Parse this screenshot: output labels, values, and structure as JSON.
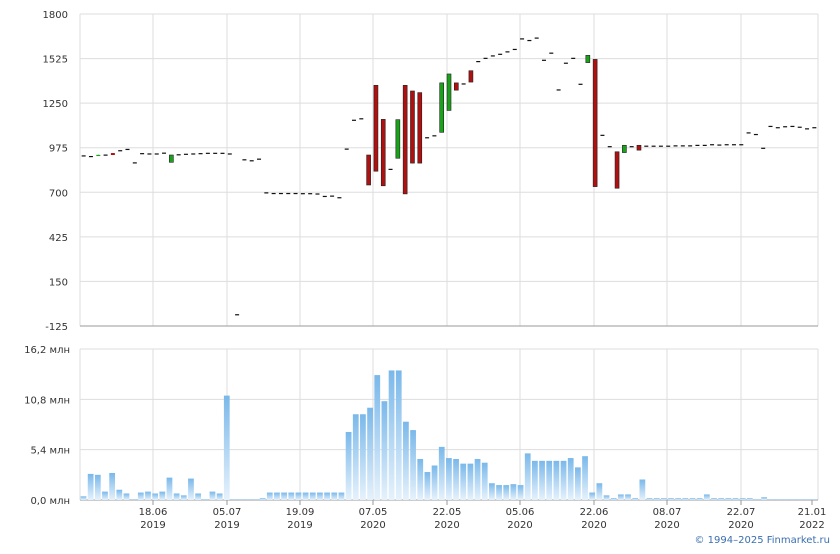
{
  "chart_data": [
    {
      "type": "candlestick",
      "title": "",
      "ylim": [
        -125,
        1800
      ],
      "yticks": [
        "1800",
        "1525",
        "1250",
        "975",
        "700",
        "425",
        "150",
        "-125"
      ],
      "grid": true,
      "colors": {
        "up": "#1aa31a",
        "down": "#b01010",
        "doji": "#111111",
        "grid": "#dddddd",
        "axis": "#999999"
      },
      "candles": [
        {
          "o": 928,
          "h": 928,
          "l": 928,
          "c": 928
        },
        {
          "o": 924,
          "h": 924,
          "l": 924,
          "c": 924
        },
        {
          "o": 925,
          "h": 931,
          "l": 925,
          "c": 931
        },
        {
          "o": 933,
          "h": 933,
          "l": 933,
          "c": 933
        },
        {
          "o": 942,
          "h": 942,
          "l": 930,
          "c": 930
        },
        {
          "o": 960,
          "h": 960,
          "l": 960,
          "c": 960
        },
        {
          "o": 968,
          "h": 968,
          "l": 968,
          "c": 968
        },
        {
          "o": 885,
          "h": 885,
          "l": 885,
          "c": 885
        },
        {
          "o": 942,
          "h": 942,
          "l": 942,
          "c": 942
        },
        {
          "o": 940,
          "h": 940,
          "l": 940,
          "c": 940
        },
        {
          "o": 940,
          "h": 940,
          "l": 940,
          "c": 940
        },
        {
          "o": 945,
          "h": 945,
          "l": 945,
          "c": 945
        },
        {
          "o": 885,
          "h": 930,
          "l": 885,
          "c": 930
        },
        {
          "o": 935,
          "h": 935,
          "l": 935,
          "c": 935
        },
        {
          "o": 938,
          "h": 938,
          "l": 938,
          "c": 938
        },
        {
          "o": 940,
          "h": 940,
          "l": 940,
          "c": 940
        },
        {
          "o": 942,
          "h": 942,
          "l": 942,
          "c": 942
        },
        {
          "o": 944,
          "h": 944,
          "l": 944,
          "c": 944
        },
        {
          "o": 944,
          "h": 944,
          "l": 944,
          "c": 944
        },
        {
          "o": 944,
          "h": 944,
          "l": 944,
          "c": 944
        },
        {
          "o": 940,
          "h": 940,
          "l": 940,
          "c": 940
        },
        {
          "o": -52,
          "h": -52,
          "l": -52,
          "c": -52
        },
        {
          "o": 904,
          "h": 904,
          "l": 904,
          "c": 904
        },
        {
          "o": 898,
          "h": 898,
          "l": 898,
          "c": 898
        },
        {
          "o": 908,
          "h": 908,
          "l": 908,
          "c": 908
        },
        {
          "o": 700,
          "h": 700,
          "l": 700,
          "c": 700
        },
        {
          "o": 696,
          "h": 696,
          "l": 696,
          "c": 696
        },
        {
          "o": 696,
          "h": 696,
          "l": 696,
          "c": 696
        },
        {
          "o": 696,
          "h": 696,
          "l": 696,
          "c": 696
        },
        {
          "o": 696,
          "h": 696,
          "l": 696,
          "c": 696
        },
        {
          "o": 695,
          "h": 695,
          "l": 695,
          "c": 695
        },
        {
          "o": 695,
          "h": 695,
          "l": 695,
          "c": 695
        },
        {
          "o": 693,
          "h": 693,
          "l": 693,
          "c": 693
        },
        {
          "o": 678,
          "h": 678,
          "l": 678,
          "c": 678
        },
        {
          "o": 680,
          "h": 680,
          "l": 680,
          "c": 680
        },
        {
          "o": 670,
          "h": 670,
          "l": 670,
          "c": 670
        },
        {
          "o": 970,
          "h": 970,
          "l": 970,
          "c": 970
        },
        {
          "o": 1148,
          "h": 1148,
          "l": 1148,
          "c": 1148
        },
        {
          "o": 1157,
          "h": 1157,
          "l": 1157,
          "c": 1157
        },
        {
          "o": 930,
          "h": 930,
          "l": 745,
          "c": 745
        },
        {
          "o": 1360,
          "h": 1360,
          "l": 830,
          "c": 830
        },
        {
          "o": 1150,
          "h": 1150,
          "l": 740,
          "c": 740
        },
        {
          "o": 845,
          "h": 845,
          "l": 845,
          "c": 845
        },
        {
          "o": 910,
          "h": 1148,
          "l": 910,
          "c": 1148
        },
        {
          "o": 1360,
          "h": 1360,
          "l": 690,
          "c": 690
        },
        {
          "o": 1325,
          "h": 1325,
          "l": 880,
          "c": 880
        },
        {
          "o": 1315,
          "h": 1315,
          "l": 880,
          "c": 880
        },
        {
          "o": 1040,
          "h": 1040,
          "l": 1040,
          "c": 1040
        },
        {
          "o": 1052,
          "h": 1052,
          "l": 1052,
          "c": 1052
        },
        {
          "o": 1070,
          "h": 1375,
          "l": 1070,
          "c": 1375
        },
        {
          "o": 1205,
          "h": 1430,
          "l": 1205,
          "c": 1430
        },
        {
          "o": 1375,
          "h": 1375,
          "l": 1330,
          "c": 1330
        },
        {
          "o": 1372,
          "h": 1372,
          "l": 1372,
          "c": 1372
        },
        {
          "o": 1450,
          "h": 1450,
          "l": 1380,
          "c": 1380
        },
        {
          "o": 1510,
          "h": 1510,
          "l": 1510,
          "c": 1510
        },
        {
          "o": 1530,
          "h": 1530,
          "l": 1530,
          "c": 1530
        },
        {
          "o": 1545,
          "h": 1545,
          "l": 1545,
          "c": 1545
        },
        {
          "o": 1555,
          "h": 1555,
          "l": 1555,
          "c": 1555
        },
        {
          "o": 1570,
          "h": 1570,
          "l": 1570,
          "c": 1570
        },
        {
          "o": 1585,
          "h": 1585,
          "l": 1585,
          "c": 1585
        },
        {
          "o": 1650,
          "h": 1650,
          "l": 1650,
          "c": 1650
        },
        {
          "o": 1640,
          "h": 1640,
          "l": 1640,
          "c": 1640
        },
        {
          "o": 1655,
          "h": 1655,
          "l": 1655,
          "c": 1655
        },
        {
          "o": 1518,
          "h": 1518,
          "l": 1518,
          "c": 1518
        },
        {
          "o": 1562,
          "h": 1562,
          "l": 1562,
          "c": 1562
        },
        {
          "o": 1335,
          "h": 1335,
          "l": 1335,
          "c": 1335
        },
        {
          "o": 1500,
          "h": 1500,
          "l": 1500,
          "c": 1500
        },
        {
          "o": 1530,
          "h": 1530,
          "l": 1530,
          "c": 1530
        },
        {
          "o": 1370,
          "h": 1370,
          "l": 1370,
          "c": 1370
        },
        {
          "o": 1500,
          "h": 1545,
          "l": 1500,
          "c": 1545
        },
        {
          "o": 1520,
          "h": 1520,
          "l": 735,
          "c": 735
        },
        {
          "o": 1055,
          "h": 1055,
          "l": 1055,
          "c": 1055
        },
        {
          "o": 985,
          "h": 985,
          "l": 985,
          "c": 985
        },
        {
          "o": 950,
          "h": 950,
          "l": 725,
          "c": 725
        },
        {
          "o": 945,
          "h": 990,
          "l": 945,
          "c": 990
        },
        {
          "o": 985,
          "h": 985,
          "l": 985,
          "c": 985
        },
        {
          "o": 990,
          "h": 990,
          "l": 960,
          "c": 960
        },
        {
          "o": 988,
          "h": 988,
          "l": 988,
          "c": 988
        },
        {
          "o": 988,
          "h": 988,
          "l": 988,
          "c": 988
        },
        {
          "o": 988,
          "h": 988,
          "l": 988,
          "c": 988
        },
        {
          "o": 988,
          "h": 988,
          "l": 988,
          "c": 988
        },
        {
          "o": 990,
          "h": 990,
          "l": 990,
          "c": 990
        },
        {
          "o": 990,
          "h": 990,
          "l": 990,
          "c": 990
        },
        {
          "o": 990,
          "h": 990,
          "l": 990,
          "c": 990
        },
        {
          "o": 993,
          "h": 993,
          "l": 993,
          "c": 993
        },
        {
          "o": 993,
          "h": 993,
          "l": 993,
          "c": 993
        },
        {
          "o": 997,
          "h": 997,
          "l": 997,
          "c": 997
        },
        {
          "o": 995,
          "h": 995,
          "l": 995,
          "c": 995
        },
        {
          "o": 997,
          "h": 997,
          "l": 997,
          "c": 997
        },
        {
          "o": 997,
          "h": 997,
          "l": 997,
          "c": 997
        },
        {
          "o": 997,
          "h": 997,
          "l": 997,
          "c": 997
        },
        {
          "o": 1070,
          "h": 1070,
          "l": 1070,
          "c": 1070
        },
        {
          "o": 1060,
          "h": 1060,
          "l": 1060,
          "c": 1060
        },
        {
          "o": 975,
          "h": 975,
          "l": 975,
          "c": 975
        },
        {
          "o": 1110,
          "h": 1110,
          "l": 1110,
          "c": 1110
        },
        {
          "o": 1102,
          "h": 1102,
          "l": 1102,
          "c": 1102
        },
        {
          "o": 1108,
          "h": 1108,
          "l": 1108,
          "c": 1108
        },
        {
          "o": 1110,
          "h": 1110,
          "l": 1110,
          "c": 1110
        },
        {
          "o": 1105,
          "h": 1105,
          "l": 1105,
          "c": 1105
        },
        {
          "o": 1095,
          "h": 1095,
          "l": 1095,
          "c": 1095
        },
        {
          "o": 1102,
          "h": 1102,
          "l": 1102,
          "c": 1102
        }
      ]
    },
    {
      "type": "bar",
      "title": "",
      "ylim": [
        0,
        16.2
      ],
      "yticks": [
        "16,2 млн",
        "10,8 млн",
        "5,4 млн",
        "0,0 млн"
      ],
      "unit": "млн",
      "grid": true,
      "colors": {
        "bar_top": "#7ab8ea",
        "bar_bottom": "#e6f2fc"
      },
      "x_ticks": [
        {
          "day": "18.06",
          "year": "2019"
        },
        {
          "day": "05.07",
          "year": "2019"
        },
        {
          "day": "19.09",
          "year": "2019"
        },
        {
          "day": "07.05",
          "year": "2020"
        },
        {
          "day": "22.05",
          "year": "2020"
        },
        {
          "day": "05.06",
          "year": "2020"
        },
        {
          "day": "22.06",
          "year": "2020"
        },
        {
          "day": "08.07",
          "year": "2020"
        },
        {
          "day": "22.07",
          "year": "2020"
        },
        {
          "day": "21.01",
          "year": "2022"
        }
      ],
      "values": [
        0.4,
        2.8,
        2.7,
        0.9,
        2.9,
        1.1,
        0.7,
        0.1,
        0.8,
        0.9,
        0.7,
        0.9,
        2.4,
        0.7,
        0.5,
        2.3,
        0.7,
        0.1,
        0.9,
        0.7,
        11.2,
        0.1,
        0.1,
        0.1,
        0.1,
        0.2,
        0.8,
        0.8,
        0.8,
        0.8,
        0.8,
        0.8,
        0.8,
        0.8,
        0.8,
        0.8,
        0.8,
        7.3,
        9.2,
        9.2,
        9.9,
        13.4,
        10.6,
        13.9,
        13.9,
        8.4,
        7.5,
        4.4,
        3.0,
        3.7,
        5.7,
        4.5,
        4.4,
        3.9,
        3.9,
        4.4,
        4.0,
        1.8,
        1.6,
        1.6,
        1.7,
        1.6,
        5.0,
        4.2,
        4.2,
        4.2,
        4.2,
        4.2,
        4.5,
        3.5,
        4.7,
        0.8,
        1.8,
        0.5,
        0.2,
        0.6,
        0.6,
        0.2,
        2.2,
        0.2,
        0.2,
        0.2,
        0.2,
        0.2,
        0.2,
        0.2,
        0.2,
        0.6,
        0.2,
        0.2,
        0.2,
        0.2,
        0.2,
        0.2,
        0.1,
        0.3,
        0.1,
        0.1,
        0.1,
        0.1,
        0.1,
        0.1,
        0.1
      ]
    }
  ],
  "credit": "© 1994–2025 Finmarket.ru"
}
